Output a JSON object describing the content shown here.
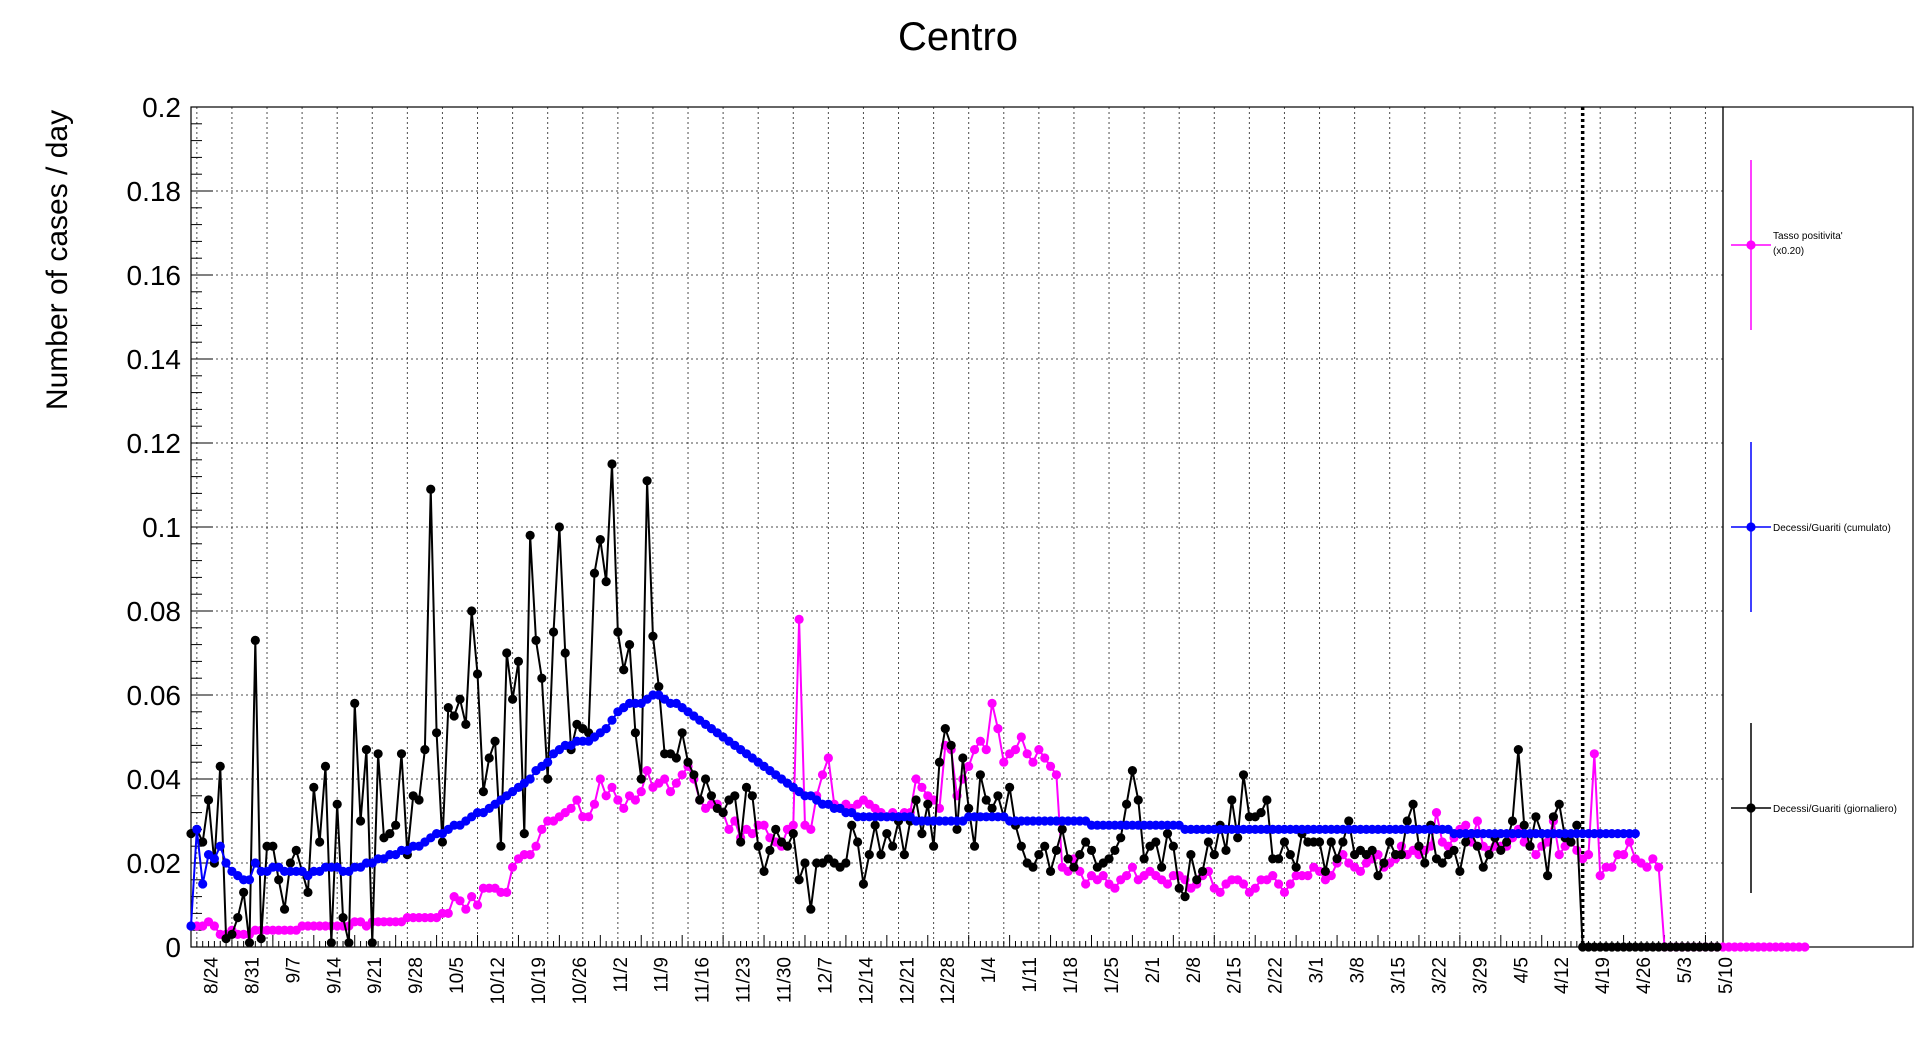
{
  "chart_data": {
    "type": "line",
    "title": "Centro",
    "ylabel": "Number of cases / day",
    "xlabel": "",
    "ylim": [
      0,
      0.2
    ],
    "y_ticks": [
      "0",
      "0.02",
      "0.04",
      "0.06",
      "0.08",
      "0.1",
      "0.12",
      "0.14",
      "0.16",
      "0.18",
      "0.2"
    ],
    "x_tick_labels": [
      "8/24",
      "8/31",
      "9/7",
      "9/14",
      "9/21",
      "9/28",
      "10/5",
      "10/12",
      "10/19",
      "10/26",
      "11/2",
      "11/9",
      "11/16",
      "11/23",
      "11/30",
      "12/7",
      "12/14",
      "12/21",
      "12/28",
      "1/4",
      "1/11",
      "1/18",
      "1/25",
      "2/1",
      "2/8",
      "2/15",
      "2/22",
      "3/1",
      "3/8",
      "3/15",
      "3/22",
      "3/29",
      "4/5",
      "4/12",
      "4/19",
      "4/26",
      "5/3",
      "5/10"
    ],
    "x_range_days": [
      0,
      262
    ],
    "x_start_label": "8/24",
    "grid": true,
    "legend_position": "right",
    "vertical_marker_day": 238,
    "series": [
      {
        "name": "Decessi/Guariti (giornaliero)",
        "color": "#000000",
        "x_step_days": 1,
        "values": [
          0.027,
          0.028,
          0.025,
          0.035,
          0.02,
          0.043,
          0.002,
          0.003,
          0.007,
          0.013,
          0.001,
          0.073,
          0.002,
          0.024,
          0.024,
          0.016,
          0.009,
          0.02,
          0.023,
          0.018,
          0.013,
          0.038,
          0.025,
          0.043,
          0.001,
          0.034,
          0.007,
          0.001,
          0.058,
          0.03,
          0.047,
          0.001,
          0.046,
          0.026,
          0.027,
          0.029,
          0.046,
          0.022,
          0.036,
          0.035,
          0.047,
          0.109,
          0.051,
          0.025,
          0.057,
          0.055,
          0.059,
          0.053,
          0.08,
          0.065,
          0.037,
          0.045,
          0.049,
          0.024,
          0.07,
          0.059,
          0.068,
          0.027,
          0.098,
          0.073,
          0.064,
          0.04,
          0.075,
          0.1,
          0.07,
          0.047,
          0.053,
          0.052,
          0.051,
          0.089,
          0.097,
          0.087,
          0.115,
          0.075,
          0.066,
          0.072,
          0.051,
          0.04,
          0.111,
          0.074,
          0.062,
          0.046,
          0.046,
          0.045,
          0.051,
          0.044,
          0.041,
          0.035,
          0.04,
          0.036,
          0.033,
          0.032,
          0.035,
          0.036,
          0.025,
          0.038,
          0.036,
          0.024,
          0.018,
          0.023,
          0.028,
          0.025,
          0.024,
          0.027,
          0.016,
          0.02,
          0.009,
          0.02,
          0.02,
          0.021,
          0.02,
          0.019,
          0.02,
          0.029,
          0.025,
          0.015,
          0.022,
          0.029,
          0.022,
          0.027,
          0.024,
          0.03,
          0.022,
          0.03,
          0.035,
          0.027,
          0.034,
          0.024,
          0.044,
          0.052,
          0.048,
          0.028,
          0.045,
          0.033,
          0.024,
          0.041,
          0.035,
          0.033,
          0.036,
          0.031,
          0.038,
          0.029,
          0.024,
          0.02,
          0.019,
          0.022,
          0.024,
          0.018,
          0.023,
          0.028,
          0.021,
          0.019,
          0.022,
          0.025,
          0.023,
          0.019,
          0.02,
          0.021,
          0.023,
          0.026,
          0.034,
          0.042,
          0.035,
          0.021,
          0.024,
          0.025,
          0.019,
          0.027,
          0.024,
          0.014,
          0.012,
          0.022,
          0.016,
          0.018,
          0.025,
          0.022,
          0.029,
          0.023,
          0.035,
          0.026,
          0.041,
          0.031,
          0.031,
          0.032,
          0.035,
          0.021,
          0.021,
          0.025,
          0.022,
          0.019,
          0.027,
          0.025,
          0.025,
          0.025,
          0.018,
          0.025,
          0.021,
          0.025,
          0.03,
          0.022,
          0.023,
          0.022,
          0.023,
          0.017,
          0.02,
          0.025,
          0.022,
          0.022,
          0.03,
          0.034,
          0.024,
          0.02,
          0.029,
          0.021,
          0.02,
          0.022,
          0.023,
          0.018,
          0.025,
          0.027,
          0.024,
          0.019,
          0.022,
          0.026,
          0.023,
          0.025,
          0.03,
          0.047,
          0.029,
          0.024,
          0.031,
          0.027,
          0.017,
          0.031,
          0.034,
          0.026,
          0.025,
          0.029,
          0.0,
          0.0,
          0.0,
          0.0,
          0.0,
          0.0,
          0.0,
          0.0,
          0.0,
          0.0,
          0.0,
          0.0,
          0.0,
          0.0,
          0.0,
          0.0,
          0.0,
          0.0,
          0.0,
          0.0,
          0.0,
          0.0,
          0.0,
          0.0
        ],
        "legend": "Decessi/Guariti (giornaliero)"
      },
      {
        "name": "Decessi/Guariti (cumulato)",
        "color": "#0000ff",
        "x_step_days": 1,
        "values": [
          0.005,
          0.028,
          0.015,
          0.022,
          0.021,
          0.024,
          0.02,
          0.018,
          0.017,
          0.016,
          0.016,
          0.02,
          0.018,
          0.018,
          0.019,
          0.019,
          0.018,
          0.018,
          0.018,
          0.018,
          0.017,
          0.018,
          0.018,
          0.019,
          0.019,
          0.019,
          0.018,
          0.018,
          0.019,
          0.019,
          0.02,
          0.02,
          0.021,
          0.021,
          0.022,
          0.022,
          0.023,
          0.023,
          0.024,
          0.024,
          0.025,
          0.026,
          0.027,
          0.027,
          0.028,
          0.029,
          0.029,
          0.03,
          0.031,
          0.032,
          0.032,
          0.033,
          0.034,
          0.035,
          0.036,
          0.037,
          0.038,
          0.039,
          0.04,
          0.042,
          0.043,
          0.044,
          0.046,
          0.047,
          0.048,
          0.048,
          0.049,
          0.049,
          0.049,
          0.05,
          0.051,
          0.052,
          0.054,
          0.056,
          0.057,
          0.058,
          0.058,
          0.058,
          0.059,
          0.06,
          0.06,
          0.059,
          0.058,
          0.058,
          0.057,
          0.056,
          0.055,
          0.054,
          0.053,
          0.052,
          0.051,
          0.05,
          0.049,
          0.048,
          0.047,
          0.046,
          0.045,
          0.044,
          0.043,
          0.042,
          0.041,
          0.04,
          0.039,
          0.038,
          0.037,
          0.036,
          0.036,
          0.035,
          0.034,
          0.034,
          0.033,
          0.033,
          0.032,
          0.032,
          0.031,
          0.031,
          0.031,
          0.031,
          0.031,
          0.031,
          0.031,
          0.031,
          0.031,
          0.031,
          0.03,
          0.03,
          0.03,
          0.03,
          0.03,
          0.03,
          0.03,
          0.03,
          0.03,
          0.031,
          0.031,
          0.031,
          0.031,
          0.031,
          0.031,
          0.031,
          0.03,
          0.03,
          0.03,
          0.03,
          0.03,
          0.03,
          0.03,
          0.03,
          0.03,
          0.03,
          0.03,
          0.03,
          0.03,
          0.03,
          0.029,
          0.029,
          0.029,
          0.029,
          0.029,
          0.029,
          0.029,
          0.029,
          0.029,
          0.029,
          0.029,
          0.029,
          0.029,
          0.029,
          0.029,
          0.029,
          0.028,
          0.028,
          0.028,
          0.028,
          0.028,
          0.028,
          0.028,
          0.028,
          0.028,
          0.028,
          0.028,
          0.028,
          0.028,
          0.028,
          0.028,
          0.028,
          0.028,
          0.028,
          0.028,
          0.028,
          0.028,
          0.028,
          0.028,
          0.028,
          0.028,
          0.028,
          0.028,
          0.028,
          0.028,
          0.028,
          0.028,
          0.028,
          0.028,
          0.028,
          0.028,
          0.028,
          0.028,
          0.028,
          0.028,
          0.028,
          0.028,
          0.028,
          0.028,
          0.028,
          0.028,
          0.028,
          0.027,
          0.027,
          0.027,
          0.027,
          0.027,
          0.027,
          0.027,
          0.027,
          0.027,
          0.027,
          0.027,
          0.027,
          0.027,
          0.027,
          0.027,
          0.027,
          0.027,
          0.027,
          0.027,
          0.027,
          0.027,
          0.027,
          0.027,
          0.027,
          0.027,
          0.027,
          0.027,
          0.027,
          0.027,
          0.027,
          0.027,
          0.027
        ],
        "legend": "Decessi/Guariti (cumulato)"
      },
      {
        "name": "Tasso positivita' (x0.20)",
        "color": "#ff00ff",
        "x_step_days": 1,
        "values": [
          0.005,
          0.005,
          0.005,
          0.006,
          0.005,
          0.003,
          0.003,
          0.004,
          0.003,
          0.003,
          0.003,
          0.004,
          0.004,
          0.004,
          0.004,
          0.004,
          0.004,
          0.004,
          0.004,
          0.005,
          0.005,
          0.005,
          0.005,
          0.005,
          0.005,
          0.005,
          0.005,
          0.005,
          0.006,
          0.006,
          0.005,
          0.006,
          0.006,
          0.006,
          0.006,
          0.006,
          0.006,
          0.007,
          0.007,
          0.007,
          0.007,
          0.007,
          0.007,
          0.008,
          0.008,
          0.012,
          0.011,
          0.009,
          0.012,
          0.01,
          0.014,
          0.014,
          0.014,
          0.013,
          0.013,
          0.019,
          0.021,
          0.022,
          0.022,
          0.024,
          0.028,
          0.03,
          0.03,
          0.031,
          0.032,
          0.033,
          0.035,
          0.031,
          0.031,
          0.034,
          0.04,
          0.036,
          0.038,
          0.035,
          0.033,
          0.036,
          0.035,
          0.037,
          0.042,
          0.038,
          0.039,
          0.04,
          0.037,
          0.039,
          0.041,
          0.043,
          0.04,
          0.035,
          0.033,
          0.034,
          0.034,
          0.032,
          0.028,
          0.03,
          0.026,
          0.028,
          0.027,
          0.029,
          0.029,
          0.026,
          0.025,
          0.024,
          0.028,
          0.029,
          0.078,
          0.029,
          0.028,
          0.036,
          0.041,
          0.045,
          0.034,
          0.033,
          0.034,
          0.033,
          0.034,
          0.035,
          0.034,
          0.033,
          0.032,
          0.031,
          0.032,
          0.031,
          0.032,
          0.032,
          0.04,
          0.038,
          0.036,
          0.035,
          0.033,
          0.048,
          0.047,
          0.036,
          0.04,
          0.043,
          0.047,
          0.049,
          0.047,
          0.058,
          0.052,
          0.044,
          0.046,
          0.047,
          0.05,
          0.046,
          0.044,
          0.047,
          0.045,
          0.043,
          0.041,
          0.019,
          0.018,
          0.021,
          0.018,
          0.015,
          0.017,
          0.016,
          0.017,
          0.015,
          0.014,
          0.016,
          0.017,
          0.019,
          0.016,
          0.017,
          0.018,
          0.017,
          0.016,
          0.015,
          0.017,
          0.017,
          0.016,
          0.014,
          0.015,
          0.017,
          0.018,
          0.014,
          0.013,
          0.015,
          0.016,
          0.016,
          0.015,
          0.013,
          0.014,
          0.016,
          0.016,
          0.017,
          0.015,
          0.013,
          0.015,
          0.017,
          0.017,
          0.017,
          0.019,
          0.018,
          0.016,
          0.017,
          0.02,
          0.022,
          0.02,
          0.019,
          0.018,
          0.02,
          0.021,
          0.022,
          0.019,
          0.02,
          0.021,
          0.024,
          0.022,
          0.023,
          0.022,
          0.023,
          0.024,
          0.032,
          0.025,
          0.024,
          0.026,
          0.028,
          0.029,
          0.025,
          0.03,
          0.024,
          0.023,
          0.024,
          0.024,
          0.024,
          0.026,
          0.028,
          0.025,
          0.024,
          0.022,
          0.024,
          0.025,
          0.03,
          0.022,
          0.024,
          0.025,
          0.023,
          0.021,
          0.022,
          0.046,
          0.017,
          0.019,
          0.019,
          0.022,
          0.022,
          0.025,
          0.021,
          0.02,
          0.019,
          0.021,
          0.019,
          0.0,
          0.0,
          0.0,
          0.0,
          0.0,
          0.0,
          0.0,
          0.0,
          0.0,
          0.0,
          0.0,
          0.0,
          0.0,
          0.0,
          0.0,
          0.0,
          0.0,
          0.0,
          0.0,
          0.0,
          0.0,
          0.0,
          0.0,
          0.0,
          0.0
        ],
        "legend": "Tasso positivita' (x0.20)"
      }
    ],
    "legend_entries": [
      {
        "label_line1": "Tasso positivita'",
        "label_line2": "(x0.20)",
        "color": "#ff00ff"
      },
      {
        "label_line1": "Decessi/Guariti (cumulato)",
        "label_line2": "",
        "color": "#0000ff"
      },
      {
        "label_line1": "Decessi/Guariti (giornaliero)",
        "label_line2": "",
        "color": "#000000"
      }
    ]
  }
}
